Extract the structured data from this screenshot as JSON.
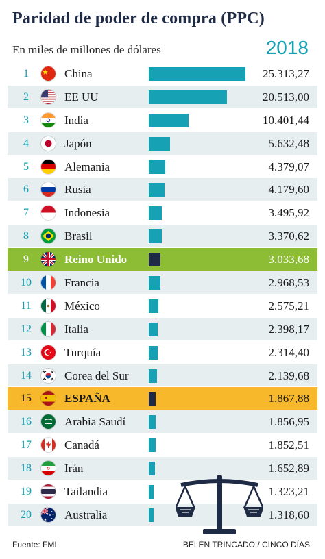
{
  "title": "Paridad de poder de compra (PPC)",
  "subtitle": "En miles de millones de dólares",
  "year": "2018",
  "source": "Fuente: FMI",
  "credit": "BELÉN TRINCADO / CINCO DÍAS",
  "icons": [
    "scales-icon"
  ],
  "colors": {
    "accent": "#16a2b4",
    "highlight_green": "#8dbd34",
    "highlight_yellow": "#f7b92b",
    "dark": "#1f2a44"
  },
  "chart_data": {
    "type": "bar",
    "orientation": "horizontal",
    "title": "Paridad de poder de compra (PPC)",
    "subtitle": "En miles de millones de dólares",
    "categories": [
      "China",
      "EE UU",
      "India",
      "Japón",
      "Alemania",
      "Rusia",
      "Indonesia",
      "Brasil",
      "Reino Unido",
      "Francia",
      "México",
      "Italia",
      "Turquía",
      "Corea del Sur",
      "ESPAÑA",
      "Arabia Saudí",
      "Canadá",
      "Irán",
      "Tailandia",
      "Australia"
    ],
    "ranks": [
      "1",
      "2",
      "3",
      "4",
      "5",
      "6",
      "7",
      "8",
      "9",
      "10",
      "11",
      "12",
      "13",
      "14",
      "15",
      "16",
      "17",
      "18",
      "19",
      "20"
    ],
    "values": [
      25313.27,
      20513.0,
      10401.44,
      5632.48,
      4379.07,
      4179.6,
      3495.92,
      3370.62,
      3033.68,
      2968.53,
      2575.21,
      2398.17,
      2314.4,
      2139.68,
      1867.88,
      1856.95,
      1852.51,
      1652.89,
      1323.21,
      1318.6
    ],
    "value_labels": [
      "25.313,27",
      "20.513,00",
      "10.401,44",
      "5.632,48",
      "4.379,07",
      "4.179,60",
      "3.495,92",
      "3.370,62",
      "3.033,68",
      "2.968,53",
      "2.575,21",
      "2.398,17",
      "2.314,40",
      "2.139,68",
      "1.867,88",
      "1.856,95",
      "1.852,51",
      "1.652,89",
      "1.323,21",
      "1.318,60"
    ],
    "flags": [
      "china-flag-icon",
      "usa-flag-icon",
      "india-flag-icon",
      "japan-flag-icon",
      "germany-flag-icon",
      "russia-flag-icon",
      "indonesia-flag-icon",
      "brazil-flag-icon",
      "uk-flag-icon",
      "france-flag-icon",
      "mexico-flag-icon",
      "italy-flag-icon",
      "turkey-flag-icon",
      "south-korea-flag-icon",
      "spain-flag-icon",
      "saudi-arabia-flag-icon",
      "canada-flag-icon",
      "iran-flag-icon",
      "thailand-flag-icon",
      "australia-flag-icon"
    ],
    "highlights": {
      "Reino Unido": "green",
      "ESPAÑA": "yellow"
    },
    "xlim": [
      0,
      25313.27
    ],
    "grid": false,
    "legend": "none"
  }
}
